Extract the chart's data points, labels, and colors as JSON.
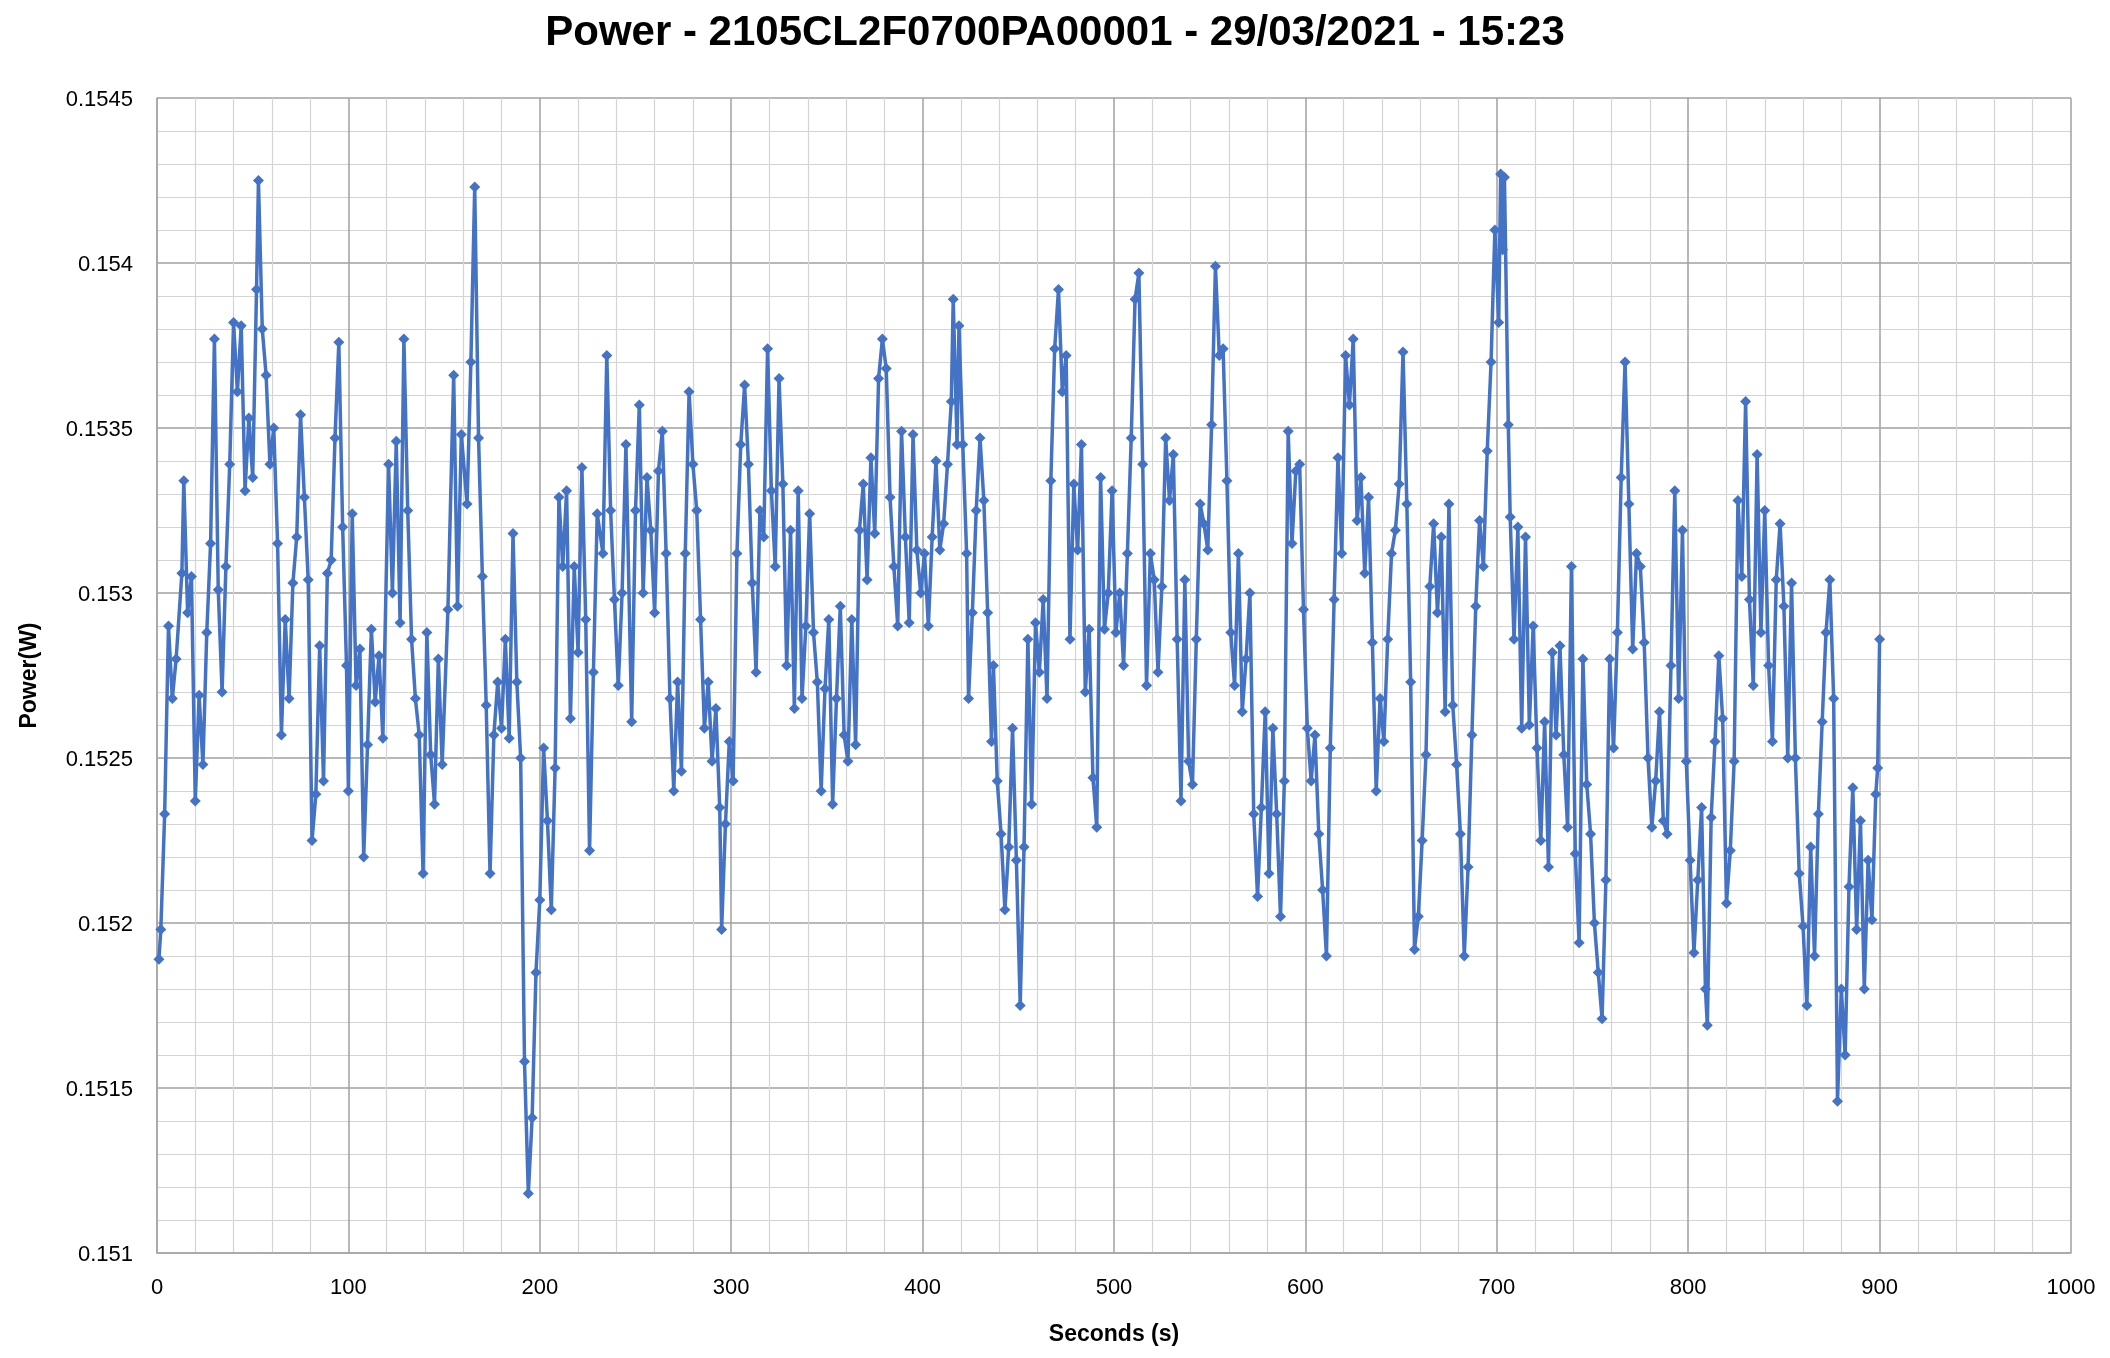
{
  "chart_data": {
    "type": "line",
    "title": "Power - 2105CL2F0700PA00001 - 29/03/2021 - 15:23",
    "xlabel": "Seconds (s)",
    "ylabel": "Power(W)",
    "x": [
      1,
      2,
      4,
      6,
      8,
      10,
      13,
      14,
      16,
      18,
      20,
      22,
      24,
      26,
      28,
      30,
      32,
      34,
      36,
      38,
      40,
      42,
      44,
      46,
      48,
      50,
      52,
      53,
      55,
      57,
      59,
      61,
      63,
      65,
      67,
      69,
      71,
      73,
      75,
      77,
      79,
      81,
      83,
      85,
      87,
      89,
      91,
      93,
      95,
      97,
      99,
      100,
      102,
      104,
      106,
      108,
      110,
      112,
      114,
      116,
      118,
      121,
      123,
      125,
      127,
      129,
      131,
      133,
      135,
      137,
      139,
      141,
      143,
      145,
      147,
      149,
      152,
      155,
      157,
      159,
      162,
      164,
      166,
      168,
      170,
      172,
      174,
      176,
      178,
      180,
      182,
      184,
      186,
      188,
      190,
      192,
      194,
      196,
      198,
      200,
      202,
      204,
      206,
      208,
      210,
      212,
      214,
      216,
      218,
      220,
      222,
      224,
      226,
      228,
      230,
      233,
      235,
      237,
      239,
      241,
      243,
      245,
      248,
      250,
      252,
      254,
      256,
      258,
      260,
      262,
      264,
      266,
      268,
      270,
      272,
      274,
      276,
      278,
      280,
      282,
      284,
      286,
      288,
      290,
      292,
      294,
      295,
      297,
      299,
      301,
      303,
      305,
      307,
      309,
      311,
      313,
      315,
      317,
      319,
      321,
      323,
      325,
      327,
      329,
      331,
      333,
      335,
      337,
      339,
      341,
      343,
      345,
      347,
      349,
      351,
      353,
      355,
      357,
      359,
      361,
      363,
      365,
      367,
      369,
      371,
      373,
      375,
      377,
      379,
      381,
      383,
      385,
      387,
      389,
      391,
      393,
      395,
      397,
      399,
      401,
      403,
      405,
      407,
      409,
      411,
      413,
      415,
      416,
      418,
      419,
      421,
      423,
      424,
      426,
      428,
      430,
      432,
      434,
      436,
      437,
      439,
      441,
      443,
      445,
      447,
      449,
      451,
      453,
      455,
      457,
      459,
      461,
      463,
      465,
      467,
      469,
      471,
      473,
      475,
      477,
      479,
      481,
      483,
      485,
      487,
      489,
      491,
      493,
      495,
      497,
      499,
      501,
      503,
      505,
      507,
      509,
      511,
      513,
      515,
      517,
      519,
      521,
      523,
      525,
      527,
      529,
      531,
      533,
      535,
      537,
      539,
      541,
      543,
      545,
      547,
      549,
      551,
      553,
      555,
      557,
      559,
      561,
      563,
      565,
      567,
      569,
      571,
      573,
      575,
      577,
      579,
      581,
      583,
      585,
      587,
      589,
      591,
      593,
      595,
      597,
      599,
      601,
      603,
      605,
      607,
      609,
      611,
      613,
      615,
      617,
      619,
      621,
      623,
      625,
      627,
      629,
      631,
      633,
      635,
      637,
      639,
      641,
      643,
      645,
      647,
      649,
      651,
      653,
      655,
      657,
      659,
      661,
      663,
      665,
      667,
      669,
      671,
      673,
      675,
      677,
      679,
      681,
      683,
      685,
      687,
      689,
      691,
      693,
      695,
      697,
      699,
      701,
      702,
      703,
      704,
      706,
      707,
      709,
      711,
      713,
      715,
      717,
      719,
      721,
      723,
      725,
      727,
      729,
      731,
      733,
      735,
      737,
      739,
      741,
      743,
      745,
      747,
      749,
      751,
      753,
      755,
      757,
      759,
      761,
      763,
      765,
      767,
      769,
      771,
      773,
      775,
      777,
      779,
      781,
      783,
      785,
      787,
      789,
      791,
      793,
      795,
      797,
      799,
      801,
      803,
      805,
      807,
      809,
      810,
      812,
      814,
      816,
      818,
      820,
      822,
      824,
      826,
      828,
      830,
      832,
      834,
      836,
      838,
      840,
      842,
      844,
      846,
      848,
      850,
      852,
      854,
      856,
      858,
      860,
      862,
      864,
      866,
      868,
      870,
      872,
      874,
      876,
      878,
      880,
      882,
      884,
      886,
      888,
      890,
      892,
      894,
      896,
      898,
      899,
      900
    ],
    "series": [
      {
        "color": "#4472c4",
        "values": [
          0.15189,
          0.15198,
          0.15233,
          0.1529,
          0.15268,
          0.1528,
          0.15306,
          0.15334,
          0.15294,
          0.15305,
          0.15237,
          0.15269,
          0.15248,
          0.15288,
          0.15315,
          0.15377,
          0.15301,
          0.1527,
          0.15308,
          0.15339,
          0.15382,
          0.15361,
          0.15381,
          0.15331,
          0.15353,
          0.15335,
          0.15392,
          0.15425,
          0.1538,
          0.15366,
          0.15339,
          0.1535,
          0.15315,
          0.15257,
          0.15292,
          0.15268,
          0.15303,
          0.15317,
          0.15354,
          0.15329,
          0.15304,
          0.15225,
          0.15239,
          0.15284,
          0.15243,
          0.15306,
          0.1531,
          0.15347,
          0.15376,
          0.1532,
          0.15278,
          0.1524,
          0.15324,
          0.15272,
          0.15283,
          0.1522,
          0.15254,
          0.15289,
          0.15267,
          0.15281,
          0.15256,
          0.15339,
          0.153,
          0.15346,
          0.15291,
          0.15377,
          0.15325,
          0.15286,
          0.15268,
          0.15257,
          0.15215,
          0.15288,
          0.15251,
          0.15236,
          0.1528,
          0.15248,
          0.15295,
          0.15366,
          0.15296,
          0.15348,
          0.15327,
          0.1537,
          0.15423,
          0.15347,
          0.15305,
          0.15266,
          0.15215,
          0.15257,
          0.15273,
          0.15259,
          0.15286,
          0.15256,
          0.15318,
          0.15273,
          0.1525,
          0.15158,
          0.15118,
          0.15141,
          0.15185,
          0.15207,
          0.15253,
          0.15231,
          0.15204,
          0.15247,
          0.15329,
          0.15308,
          0.15331,
          0.15262,
          0.15308,
          0.15282,
          0.15338,
          0.15292,
          0.15222,
          0.15276,
          0.15324,
          0.15312,
          0.15372,
          0.15325,
          0.15298,
          0.15272,
          0.153,
          0.15345,
          0.15261,
          0.15325,
          0.15357,
          0.153,
          0.15335,
          0.15319,
          0.15294,
          0.15337,
          0.15349,
          0.15312,
          0.15268,
          0.1524,
          0.15273,
          0.15246,
          0.15312,
          0.15361,
          0.15339,
          0.15325,
          0.15292,
          0.15259,
          0.15273,
          0.15249,
          0.15265,
          0.15235,
          0.15198,
          0.1523,
          0.15255,
          0.15243,
          0.15312,
          0.15345,
          0.15363,
          0.15339,
          0.15303,
          0.15276,
          0.15325,
          0.15317,
          0.15374,
          0.15331,
          0.15308,
          0.15365,
          0.15333,
          0.15278,
          0.15319,
          0.15265,
          0.15331,
          0.15268,
          0.1529,
          0.15324,
          0.15288,
          0.15273,
          0.1524,
          0.15271,
          0.15292,
          0.15236,
          0.15268,
          0.15296,
          0.15257,
          0.15249,
          0.15292,
          0.15254,
          0.15319,
          0.15333,
          0.15304,
          0.15341,
          0.15318,
          0.15365,
          0.15377,
          0.15368,
          0.15329,
          0.15308,
          0.1529,
          0.15349,
          0.15317,
          0.15291,
          0.15348,
          0.15313,
          0.153,
          0.15312,
          0.1529,
          0.15317,
          0.1534,
          0.15313,
          0.15321,
          0.15339,
          0.15358,
          0.15389,
          0.15345,
          0.15381,
          0.15345,
          0.15312,
          0.15268,
          0.15294,
          0.15325,
          0.15347,
          0.15328,
          0.15294,
          0.15255,
          0.15278,
          0.15243,
          0.15227,
          0.15204,
          0.15223,
          0.15259,
          0.15219,
          0.15175,
          0.15223,
          0.15286,
          0.15236,
          0.15291,
          0.15276,
          0.15298,
          0.15268,
          0.15334,
          0.15374,
          0.15392,
          0.15361,
          0.15372,
          0.15286,
          0.15333,
          0.15313,
          0.15345,
          0.1527,
          0.15289,
          0.15244,
          0.15229,
          0.15335,
          0.15289,
          0.153,
          0.15331,
          0.15288,
          0.153,
          0.15278,
          0.15312,
          0.15347,
          0.15389,
          0.15397,
          0.15339,
          0.15272,
          0.15312,
          0.15304,
          0.15276,
          0.15302,
          0.15347,
          0.15328,
          0.15342,
          0.15286,
          0.15237,
          0.15304,
          0.15249,
          0.15242,
          0.15286,
          0.15327,
          0.15321,
          0.15313,
          0.15351,
          0.15399,
          0.15372,
          0.15374,
          0.15334,
          0.15288,
          0.15272,
          0.15312,
          0.15264,
          0.1528,
          0.153,
          0.15233,
          0.15208,
          0.15235,
          0.15264,
          0.15215,
          0.15259,
          0.15233,
          0.15202,
          0.15243,
          0.15349,
          0.15315,
          0.15337,
          0.15339,
          0.15295,
          0.15259,
          0.15243,
          0.15257,
          0.15227,
          0.1521,
          0.1519,
          0.15253,
          0.15298,
          0.15341,
          0.15312,
          0.15372,
          0.15357,
          0.15377,
          0.15322,
          0.15335,
          0.15306,
          0.15329,
          0.15285,
          0.1524,
          0.15268,
          0.15255,
          0.15286,
          0.15312,
          0.15319,
          0.15333,
          0.15373,
          0.15327,
          0.15273,
          0.15192,
          0.15202,
          0.15225,
          0.15251,
          0.15302,
          0.15321,
          0.15294,
          0.15317,
          0.15264,
          0.15327,
          0.15266,
          0.15248,
          0.15227,
          0.1519,
          0.15217,
          0.15257,
          0.15296,
          0.15322,
          0.15308,
          0.15343,
          0.1537,
          0.1541,
          0.15382,
          0.15427,
          0.15404,
          0.15426,
          0.15351,
          0.15323,
          0.15286,
          0.1532,
          0.15259,
          0.15317,
          0.1526,
          0.1529,
          0.15253,
          0.15225,
          0.15261,
          0.15217,
          0.15282,
          0.15257,
          0.15284,
          0.15251,
          0.15229,
          0.15308,
          0.15221,
          0.15194,
          0.1528,
          0.15242,
          0.15227,
          0.152,
          0.15185,
          0.15171,
          0.15213,
          0.1528,
          0.15253,
          0.15288,
          0.15335,
          0.1537,
          0.15327,
          0.15283,
          0.15312,
          0.15308,
          0.15285,
          0.1525,
          0.15229,
          0.15243,
          0.15264,
          0.15231,
          0.15227,
          0.15278,
          0.15331,
          0.15268,
          0.15319,
          0.15249,
          0.15219,
          0.15191,
          0.15213,
          0.15235,
          0.1518,
          0.15169,
          0.15232,
          0.15255,
          0.15281,
          0.15262,
          0.15206,
          0.15222,
          0.15249,
          0.15328,
          0.15305,
          0.15358,
          0.15298,
          0.15272,
          0.15342,
          0.15288,
          0.15325,
          0.15278,
          0.15255,
          0.15304,
          0.15321,
          0.15296,
          0.1525,
          0.15303,
          0.1525,
          0.15215,
          0.15199,
          0.15175,
          0.15223,
          0.1519,
          0.15233,
          0.15261,
          0.15288,
          0.15304,
          0.15268,
          0.15146,
          0.1518,
          0.1516,
          0.15211,
          0.15241,
          0.15198,
          0.15231,
          0.1518,
          0.15219,
          0.15201,
          0.15239,
          0.15247,
          0.15286
        ]
      }
    ],
    "xlim": [
      0,
      1000
    ],
    "ylim": [
      0.151,
      0.1545
    ],
    "xticks": [
      0,
      100,
      200,
      300,
      400,
      500,
      600,
      700,
      800,
      900,
      1000
    ],
    "yticks": [
      0.151,
      0.1515,
      0.152,
      0.1525,
      0.153,
      0.1535,
      0.154,
      0.1545
    ],
    "grid": true,
    "marker": "diamond",
    "line_style": "solid"
  }
}
